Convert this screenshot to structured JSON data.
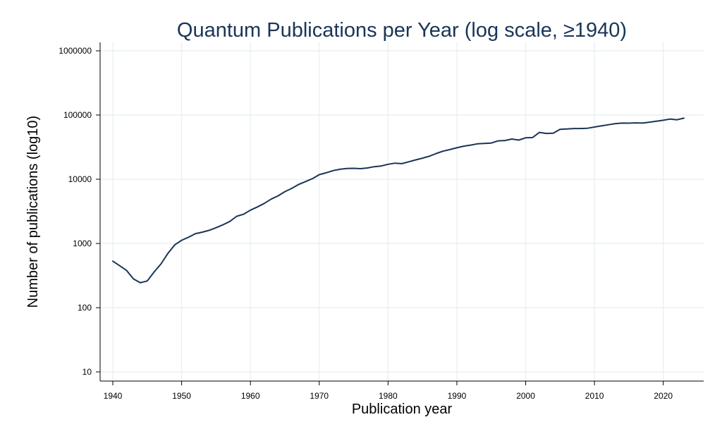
{
  "chart_data": {
    "type": "line",
    "title": "Quantum Publications per Year (log scale, ≥1940)",
    "xlabel": "Publication year",
    "ylabel": "Number of publications (log10)",
    "xlim": [
      1940,
      2023
    ],
    "ylim": [
      10,
      1000000
    ],
    "yscale": "log",
    "grid": true,
    "xticks": [
      1940,
      1950,
      1960,
      1970,
      1980,
      1990,
      2000,
      2010,
      2020
    ],
    "xtick_labels": [
      "1940",
      "1950",
      "1960",
      "1970",
      "1980",
      "1990",
      "2000",
      "2010",
      "2020"
    ],
    "yticks": [
      10,
      100,
      1000,
      10000,
      100000,
      1000000
    ],
    "ytick_labels": [
      "10",
      "100",
      "1000",
      "10000",
      "100000",
      "1000000"
    ],
    "colors": {
      "line": "#1a3557",
      "title": "#1a3557",
      "grid": "#e6eef0"
    },
    "series": [
      {
        "x": [
          1940,
          1941,
          1942,
          1943,
          1944,
          1945,
          1946,
          1947,
          1948,
          1949,
          1950,
          1951,
          1952,
          1953,
          1954,
          1955,
          1956,
          1957,
          1958,
          1959,
          1960,
          1961,
          1962,
          1963,
          1964,
          1965,
          1966,
          1967,
          1968,
          1969,
          1970,
          1971,
          1972,
          1973,
          1974,
          1975,
          1976,
          1977,
          1978,
          1979,
          1980,
          1981,
          1982,
          1983,
          1984,
          1985,
          1986,
          1987,
          1988,
          1989,
          1990,
          1991,
          1992,
          1993,
          1994,
          1995,
          1996,
          1997,
          1998,
          1999,
          2000,
          2001,
          2002,
          2003,
          2004,
          2005,
          2006,
          2007,
          2008,
          2009,
          2010,
          2011,
          2012,
          2013,
          2014,
          2015,
          2016,
          2017,
          2018,
          2019,
          2020,
          2021,
          2022,
          2023
        ],
        "values": [
          530,
          450,
          380,
          280,
          245,
          260,
          360,
          480,
          700,
          950,
          1120,
          1250,
          1420,
          1500,
          1600,
          1760,
          1950,
          2200,
          2650,
          2850,
          3300,
          3700,
          4200,
          4900,
          5500,
          6400,
          7200,
          8300,
          9200,
          10200,
          11800,
          12600,
          13600,
          14300,
          14700,
          14800,
          14600,
          15000,
          15700,
          16100,
          17100,
          17800,
          17500,
          18700,
          20000,
          21300,
          22800,
          25200,
          27400,
          29000,
          30900,
          32800,
          34000,
          35600,
          36200,
          36600,
          39600,
          40100,
          42300,
          40700,
          44200,
          44600,
          53700,
          51600,
          52200,
          59800,
          60700,
          61600,
          61700,
          62300,
          65000,
          67800,
          70500,
          73200,
          74900,
          74700,
          75600,
          75000,
          77500,
          80000,
          83000,
          86500,
          84300,
          89500
        ]
      }
    ]
  }
}
